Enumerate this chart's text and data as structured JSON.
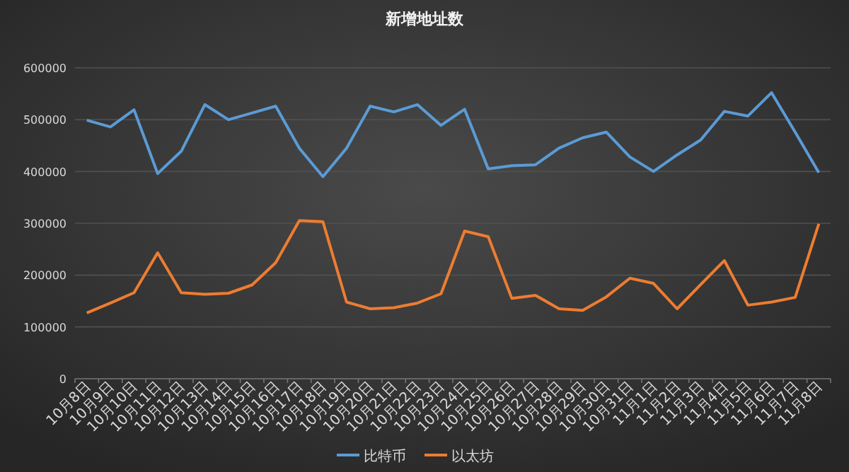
{
  "chart_data": {
    "type": "line",
    "title": "新增地址数",
    "categories": [
      "10月8日",
      "10月9日",
      "10月10日",
      "10月11日",
      "10月12日",
      "10月13日",
      "10月14日",
      "10月15日",
      "10月16日",
      "10月17日",
      "10月18日",
      "10月19日",
      "10月20日",
      "10月21日",
      "10月22日",
      "10月23日",
      "10月24日",
      "10月25日",
      "10月26日",
      "10月27日",
      "10月28日",
      "10月29日",
      "10月30日",
      "10月31日",
      "11月1日",
      "11月2日",
      "11月3日",
      "11月4日",
      "11月5日",
      "11月6日",
      "11月7日",
      "11月8日"
    ],
    "series": [
      {
        "name": "比特币",
        "color": "#5b9bd5",
        "values": [
          499000,
          486000,
          519000,
          396000,
          439000,
          529000,
          500000,
          513000,
          526000,
          445000,
          390000,
          445000,
          526000,
          515000,
          529000,
          489000,
          520000,
          405000,
          411000,
          413000,
          445000,
          465000,
          476000,
          428000,
          400000,
          432000,
          461000,
          516000,
          507000,
          552000,
          476000,
          398000
        ]
      },
      {
        "name": "以太坊",
        "color": "#ed7d31",
        "values": [
          127000,
          146000,
          166000,
          243000,
          166000,
          163000,
          165000,
          181000,
          224000,
          305000,
          303000,
          148000,
          135000,
          137000,
          146000,
          164000,
          285000,
          274000,
          155000,
          161000,
          135000,
          132000,
          158000,
          194000,
          184000,
          135000,
          182000,
          228000,
          142000,
          148000,
          157000,
          299000
        ]
      }
    ],
    "ylim": [
      0,
      600000
    ],
    "yticks": [
      0,
      100000,
      200000,
      300000,
      400000,
      500000,
      600000
    ],
    "grid": "y",
    "legend": "bottom"
  }
}
